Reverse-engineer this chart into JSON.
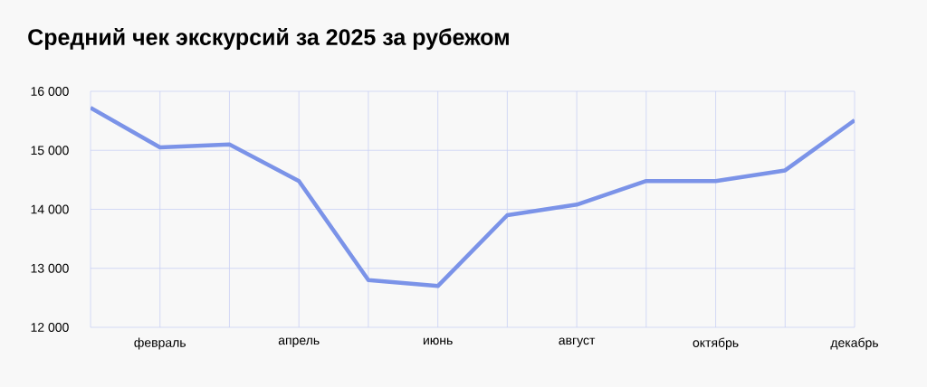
{
  "chart_data": {
    "type": "line",
    "title": "Средний чек экскурсий за 2025 за рубежом",
    "categories": [
      null,
      "февраль",
      null,
      "апрель",
      null,
      "июнь",
      null,
      "август",
      null,
      "октябрь",
      null,
      "декабрь"
    ],
    "values": [
      15720,
      15050,
      15100,
      14480,
      12800,
      12700,
      13900,
      14080,
      14480,
      14480,
      14660,
      15510
    ],
    "color": "#7b93e8",
    "ylim": [
      12000,
      16000
    ],
    "yticks": [
      {
        "value": 12000,
        "label": "12 000"
      },
      {
        "value": 13000,
        "label": "13 000"
      },
      {
        "value": 14000,
        "label": "14 000"
      },
      {
        "value": 15000,
        "label": "15 000"
      },
      {
        "value": 16000,
        "label": "16 000"
      }
    ],
    "grid": true
  }
}
